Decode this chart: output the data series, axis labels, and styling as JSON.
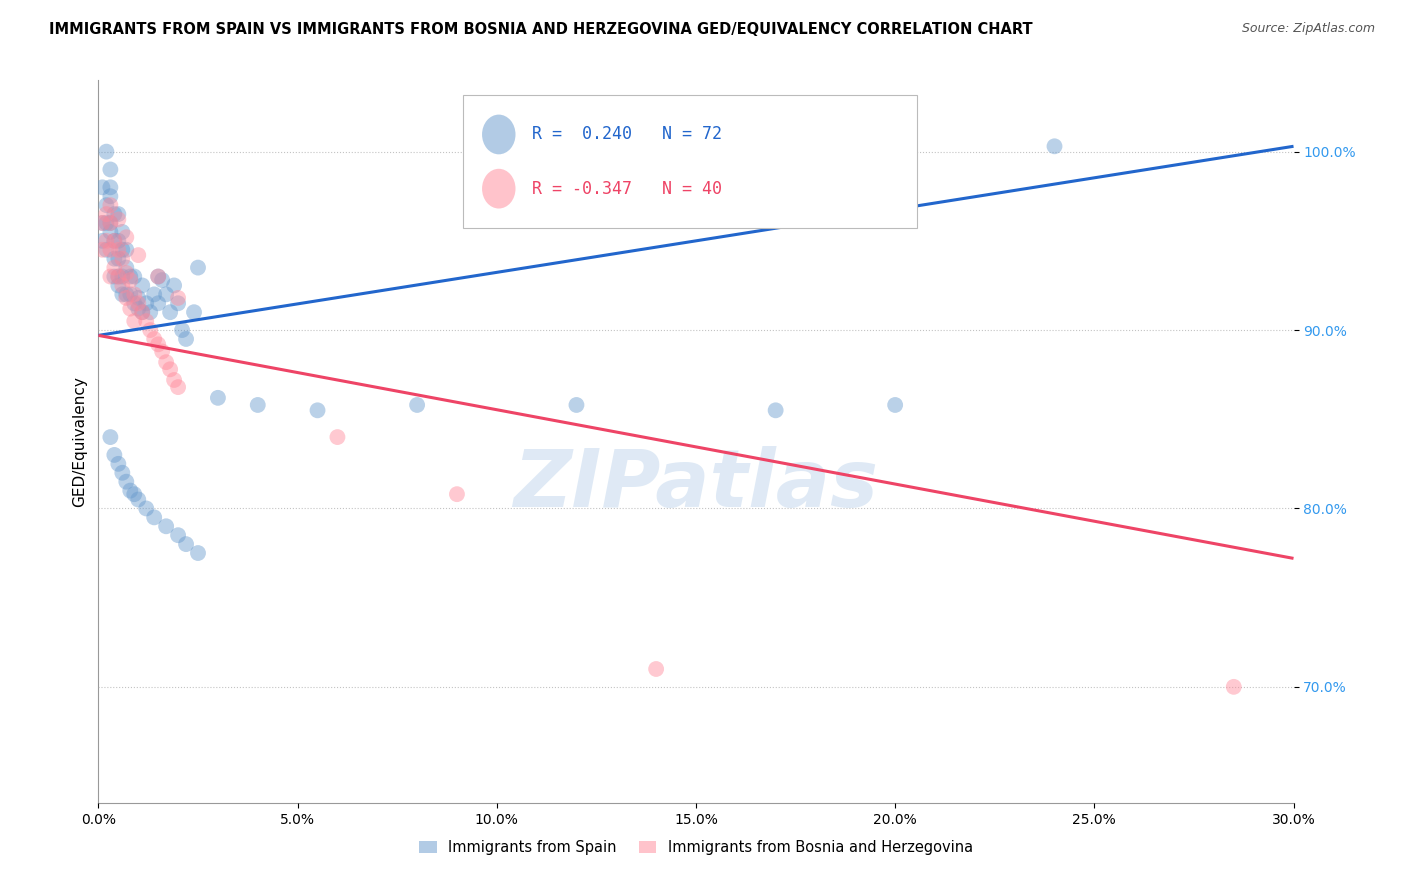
{
  "title": "IMMIGRANTS FROM SPAIN VS IMMIGRANTS FROM BOSNIA AND HERZEGOVINA GED/EQUIVALENCY CORRELATION CHART",
  "source": "Source: ZipAtlas.com",
  "ylabel": "GED/Equivalency",
  "xlim": [
    0.0,
    0.3
  ],
  "ylim": [
    0.635,
    1.04
  ],
  "x_ticks": [
    0.0,
    0.05,
    0.1,
    0.15,
    0.2,
    0.25,
    0.3
  ],
  "x_tick_labels": [
    "0.0%",
    "5.0%",
    "10.0%",
    "15.0%",
    "20.0%",
    "25.0%",
    "30.0%"
  ],
  "y_ticks": [
    0.7,
    0.8,
    0.9,
    1.0
  ],
  "y_tick_labels": [
    "70.0%",
    "80.0%",
    "90.0%",
    "100.0%"
  ],
  "legend_spain": "Immigrants from Spain",
  "legend_bosnia": "Immigrants from Bosnia and Herzegovina",
  "R_spain": 0.24,
  "N_spain": 72,
  "R_bosnia": -0.347,
  "N_bosnia": 40,
  "spain_color": "#6699CC",
  "bosnia_color": "#FF8899",
  "spain_line_color": "#2266CC",
  "bosnia_line_color": "#EE4466",
  "watermark": "ZIPatlas",
  "spain_line_x0": 0.0,
  "spain_line_y0": 0.897,
  "spain_line_x1": 0.3,
  "spain_line_y1": 1.003,
  "bosnia_line_x0": 0.0,
  "bosnia_line_y0": 0.897,
  "bosnia_line_x1": 0.3,
  "bosnia_line_y1": 0.772,
  "spain_x": [
    0.001,
    0.001,
    0.001,
    0.002,
    0.002,
    0.002,
    0.002,
    0.003,
    0.003,
    0.003,
    0.003,
    0.003,
    0.004,
    0.004,
    0.004,
    0.004,
    0.005,
    0.005,
    0.005,
    0.005,
    0.005,
    0.006,
    0.006,
    0.006,
    0.006,
    0.007,
    0.007,
    0.007,
    0.008,
    0.008,
    0.009,
    0.009,
    0.01,
    0.01,
    0.011,
    0.011,
    0.012,
    0.013,
    0.014,
    0.015,
    0.015,
    0.016,
    0.017,
    0.018,
    0.019,
    0.02,
    0.021,
    0.022,
    0.024,
    0.025,
    0.003,
    0.004,
    0.005,
    0.006,
    0.007,
    0.008,
    0.009,
    0.01,
    0.012,
    0.014,
    0.017,
    0.02,
    0.022,
    0.025,
    0.03,
    0.04,
    0.055,
    0.08,
    0.12,
    0.17,
    0.2,
    0.24
  ],
  "spain_y": [
    0.96,
    0.95,
    0.98,
    0.97,
    0.96,
    0.945,
    1.0,
    0.99,
    0.975,
    0.96,
    0.955,
    0.98,
    0.965,
    0.95,
    0.94,
    0.93,
    0.965,
    0.95,
    0.94,
    0.925,
    0.93,
    0.955,
    0.945,
    0.93,
    0.92,
    0.945,
    0.935,
    0.92,
    0.93,
    0.92,
    0.915,
    0.93,
    0.918,
    0.912,
    0.91,
    0.925,
    0.915,
    0.91,
    0.92,
    0.93,
    0.915,
    0.928,
    0.92,
    0.91,
    0.925,
    0.915,
    0.9,
    0.895,
    0.91,
    0.935,
    0.84,
    0.83,
    0.825,
    0.82,
    0.815,
    0.81,
    0.808,
    0.805,
    0.8,
    0.795,
    0.79,
    0.785,
    0.78,
    0.775,
    0.862,
    0.858,
    0.855,
    0.858,
    0.858,
    0.855,
    0.858,
    1.003
  ],
  "bosnia_x": [
    0.001,
    0.001,
    0.002,
    0.002,
    0.003,
    0.003,
    0.003,
    0.004,
    0.004,
    0.005,
    0.005,
    0.006,
    0.006,
    0.007,
    0.007,
    0.008,
    0.008,
    0.009,
    0.009,
    0.01,
    0.011,
    0.012,
    0.013,
    0.014,
    0.015,
    0.016,
    0.017,
    0.018,
    0.019,
    0.02,
    0.003,
    0.005,
    0.007,
    0.01,
    0.015,
    0.02,
    0.06,
    0.09,
    0.14,
    0.285
  ],
  "bosnia_y": [
    0.96,
    0.945,
    0.965,
    0.95,
    0.945,
    0.93,
    0.96,
    0.95,
    0.935,
    0.945,
    0.93,
    0.94,
    0.925,
    0.932,
    0.918,
    0.928,
    0.912,
    0.92,
    0.905,
    0.915,
    0.91,
    0.905,
    0.9,
    0.895,
    0.892,
    0.888,
    0.882,
    0.878,
    0.872,
    0.868,
    0.97,
    0.962,
    0.952,
    0.942,
    0.93,
    0.918,
    0.84,
    0.808,
    0.71,
    0.7
  ]
}
